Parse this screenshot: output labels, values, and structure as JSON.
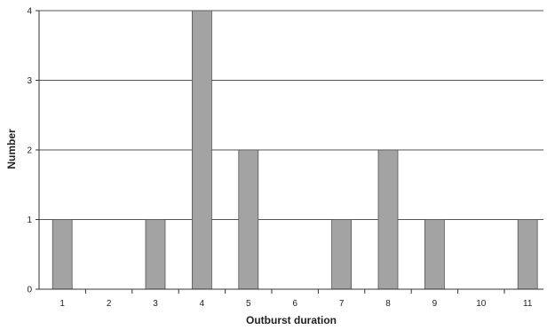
{
  "chart_data": {
    "type": "bar",
    "categories": [
      "1",
      "2",
      "3",
      "4",
      "5",
      "6",
      "7",
      "8",
      "9",
      "10",
      "11"
    ],
    "values": [
      1,
      0,
      1,
      4,
      2,
      0,
      1,
      2,
      1,
      0,
      1
    ],
    "title": "",
    "xlabel": "Outburst duration",
    "ylabel": "Number",
    "ylim": [
      0,
      4
    ],
    "yticks": [
      "0",
      "1",
      "2",
      "3",
      "4"
    ],
    "grid": true,
    "colors": {
      "bar_fill": "#a3a3a3",
      "bar_stroke": "#555555",
      "grid": "#555555",
      "axis": "#333333"
    }
  }
}
